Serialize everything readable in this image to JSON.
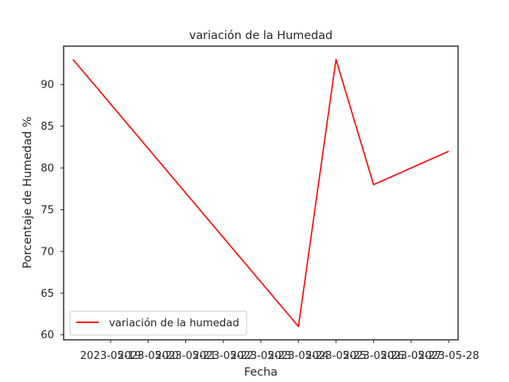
{
  "chart_data": {
    "type": "line",
    "title": "variación de la Humedad",
    "xlabel": "Fecha",
    "ylabel": "Porcentaje de Humedad %",
    "x": [
      "2023-05-18",
      "2023-05-24",
      "2023-05-25",
      "2023-05-26",
      "2023-05-28"
    ],
    "x_tick_labels": [
      "2023-05-19",
      "2023-05-20",
      "2023-05-21",
      "2023-05-22",
      "2023-05-23",
      "2023-05-24",
      "2023-05-25",
      "2023-05-26",
      "2023-05-27",
      "2023-05-28"
    ],
    "series": [
      {
        "name": "variación de la humedad",
        "values": [
          93,
          61,
          93,
          78,
          82
        ],
        "color": "#ff0000"
      }
    ],
    "y_ticks": [
      60,
      65,
      70,
      75,
      80,
      85,
      90
    ],
    "ylim": [
      59.4,
      94.6
    ],
    "xlim": [
      "2023-05-17T18:00",
      "2023-05-28T06:00"
    ],
    "grid": false,
    "legend_position": "lower-left"
  }
}
